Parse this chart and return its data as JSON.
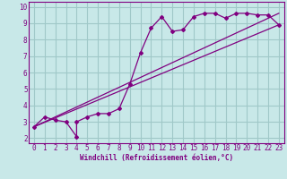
{
  "title": "",
  "xlabel": "Windchill (Refroidissement éolien,°C)",
  "ylabel": "",
  "bg_color": "#c8e8e8",
  "grid_color": "#a0c8c8",
  "line_color": "#800080",
  "xlim": [
    -0.5,
    23.5
  ],
  "ylim": [
    1.7,
    10.3
  ],
  "xticks": [
    0,
    1,
    2,
    3,
    4,
    5,
    6,
    7,
    8,
    9,
    10,
    11,
    12,
    13,
    14,
    15,
    16,
    17,
    18,
    19,
    20,
    21,
    22,
    23
  ],
  "yticks": [
    2,
    3,
    4,
    5,
    6,
    7,
    8,
    9,
    10
  ],
  "line1_x": [
    0,
    1,
    2,
    3,
    4,
    4,
    5,
    6,
    7,
    8,
    9,
    10,
    11,
    12,
    13,
    14,
    15,
    16,
    17,
    18,
    19,
    20,
    21,
    22,
    23
  ],
  "line1_y": [
    2.7,
    3.3,
    3.1,
    3.0,
    2.1,
    3.0,
    3.3,
    3.5,
    3.5,
    3.8,
    5.3,
    7.2,
    8.7,
    9.4,
    8.5,
    8.6,
    9.4,
    9.6,
    9.6,
    9.3,
    9.6,
    9.6,
    9.5,
    9.5,
    8.9
  ],
  "line2_x": [
    0,
    23
  ],
  "line2_y": [
    2.7,
    8.9
  ],
  "line3_x": [
    0,
    23
  ],
  "line3_y": [
    2.7,
    9.6
  ],
  "tick_fontsize": 5.5,
  "xlabel_fontsize": 5.5
}
